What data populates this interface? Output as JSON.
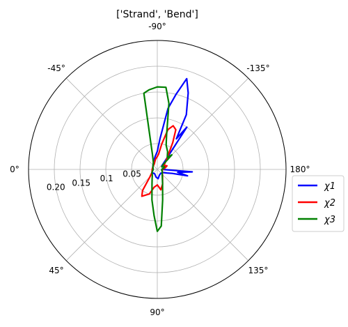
{
  "chart_data": {
    "type": "polar-line",
    "title": "['Strand', 'Bend']",
    "angle_tick_labels": [
      {
        "deg": 0,
        "label": "180°"
      },
      {
        "deg": 45,
        "label": "135°"
      },
      {
        "deg": 90,
        "label": "90°"
      },
      {
        "deg": 135,
        "label": "45°"
      },
      {
        "deg": 180,
        "label": "0°"
      },
      {
        "deg": 225,
        "label": "-45°"
      },
      {
        "deg": 270,
        "label": "-90°"
      },
      {
        "deg": 315,
        "label": "-135°"
      }
    ],
    "radial_ticks": [
      0.05,
      0.1,
      0.15,
      0.2
    ],
    "radial_tick_labels": [
      "0.05",
      "0.1",
      "0.15",
      "0.20"
    ],
    "rlim": [
      0,
      0.25
    ],
    "grid": true,
    "legend_position": "right",
    "series": [
      {
        "name": "χ1",
        "color": "#0000ff",
        "points": [
          [
            -180,
            0.01
          ],
          [
            -165,
            0.015
          ],
          [
            -150,
            0.01
          ],
          [
            -140,
            0.012
          ],
          [
            -130,
            0.03
          ],
          [
            -125,
            0.1
          ],
          [
            -122,
            0.07
          ],
          [
            -118,
            0.12
          ],
          [
            -112,
            0.16
          ],
          [
            -108,
            0.185
          ],
          [
            -104,
            0.15
          ],
          [
            -100,
            0.12
          ],
          [
            -95,
            0.06
          ],
          [
            -90,
            0.035
          ],
          [
            -80,
            0.025
          ],
          [
            -60,
            0.015
          ],
          [
            -30,
            0.01
          ],
          [
            0,
            0.008
          ],
          [
            30,
            0.012
          ],
          [
            60,
            0.01
          ],
          [
            80,
            0.015
          ],
          [
            95,
            0.018
          ],
          [
            110,
            0.012
          ],
          [
            130,
            0.01
          ],
          [
            150,
            0.012
          ],
          [
            160,
            0.02
          ],
          [
            165,
            0.03
          ],
          [
            168,
            0.06
          ],
          [
            172,
            0.04
          ],
          [
            176,
            0.068
          ],
          [
            180,
            0.01
          ]
        ]
      },
      {
        "name": "χ2",
        "color": "#ff0000",
        "points": [
          [
            -180,
            0.01
          ],
          [
            -170,
            0.015
          ],
          [
            -160,
            0.02
          ],
          [
            -150,
            0.015
          ],
          [
            -140,
            0.02
          ],
          [
            -130,
            0.03
          ],
          [
            -120,
            0.06
          ],
          [
            -115,
            0.085
          ],
          [
            -110,
            0.09
          ],
          [
            -105,
            0.08
          ],
          [
            -100,
            0.05
          ],
          [
            -95,
            0.03
          ],
          [
            -90,
            0.025
          ],
          [
            -80,
            0.02
          ],
          [
            -60,
            0.012
          ],
          [
            -30,
            0.01
          ],
          [
            0,
            0.01
          ],
          [
            30,
            0.012
          ],
          [
            45,
            0.02
          ],
          [
            55,
            0.05
          ],
          [
            60,
            0.06
          ],
          [
            65,
            0.055
          ],
          [
            72,
            0.05
          ],
          [
            80,
            0.035
          ],
          [
            90,
            0.03
          ],
          [
            100,
            0.04
          ],
          [
            110,
            0.03
          ],
          [
            125,
            0.018
          ],
          [
            145,
            0.012
          ],
          [
            165,
            0.01
          ],
          [
            180,
            0.01
          ]
        ]
      },
      {
        "name": "χ3",
        "color": "#008000",
        "points": [
          [
            -180,
            0.008
          ],
          [
            -170,
            0.012
          ],
          [
            -160,
            0.015
          ],
          [
            -150,
            0.01
          ],
          [
            -140,
            0.015
          ],
          [
            -135,
            0.04
          ],
          [
            -130,
            0.03
          ],
          [
            -120,
            0.04
          ],
          [
            -110,
            0.05
          ],
          [
            -105,
            0.07
          ],
          [
            -100,
            0.13
          ],
          [
            -96,
            0.16
          ],
          [
            -90,
            0.16
          ],
          [
            -84,
            0.155
          ],
          [
            -80,
            0.15
          ],
          [
            -76,
            0.05
          ],
          [
            -72,
            0.03
          ],
          [
            -60,
            0.015
          ],
          [
            -30,
            0.01
          ],
          [
            0,
            0.008
          ],
          [
            30,
            0.012
          ],
          [
            50,
            0.015
          ],
          [
            60,
            0.02
          ],
          [
            70,
            0.03
          ],
          [
            80,
            0.06
          ],
          [
            86,
            0.09
          ],
          [
            90,
            0.12
          ],
          [
            94,
            0.11
          ],
          [
            100,
            0.06
          ],
          [
            110,
            0.03
          ],
          [
            130,
            0.015
          ],
          [
            160,
            0.01
          ],
          [
            180,
            0.008
          ]
        ]
      }
    ]
  }
}
